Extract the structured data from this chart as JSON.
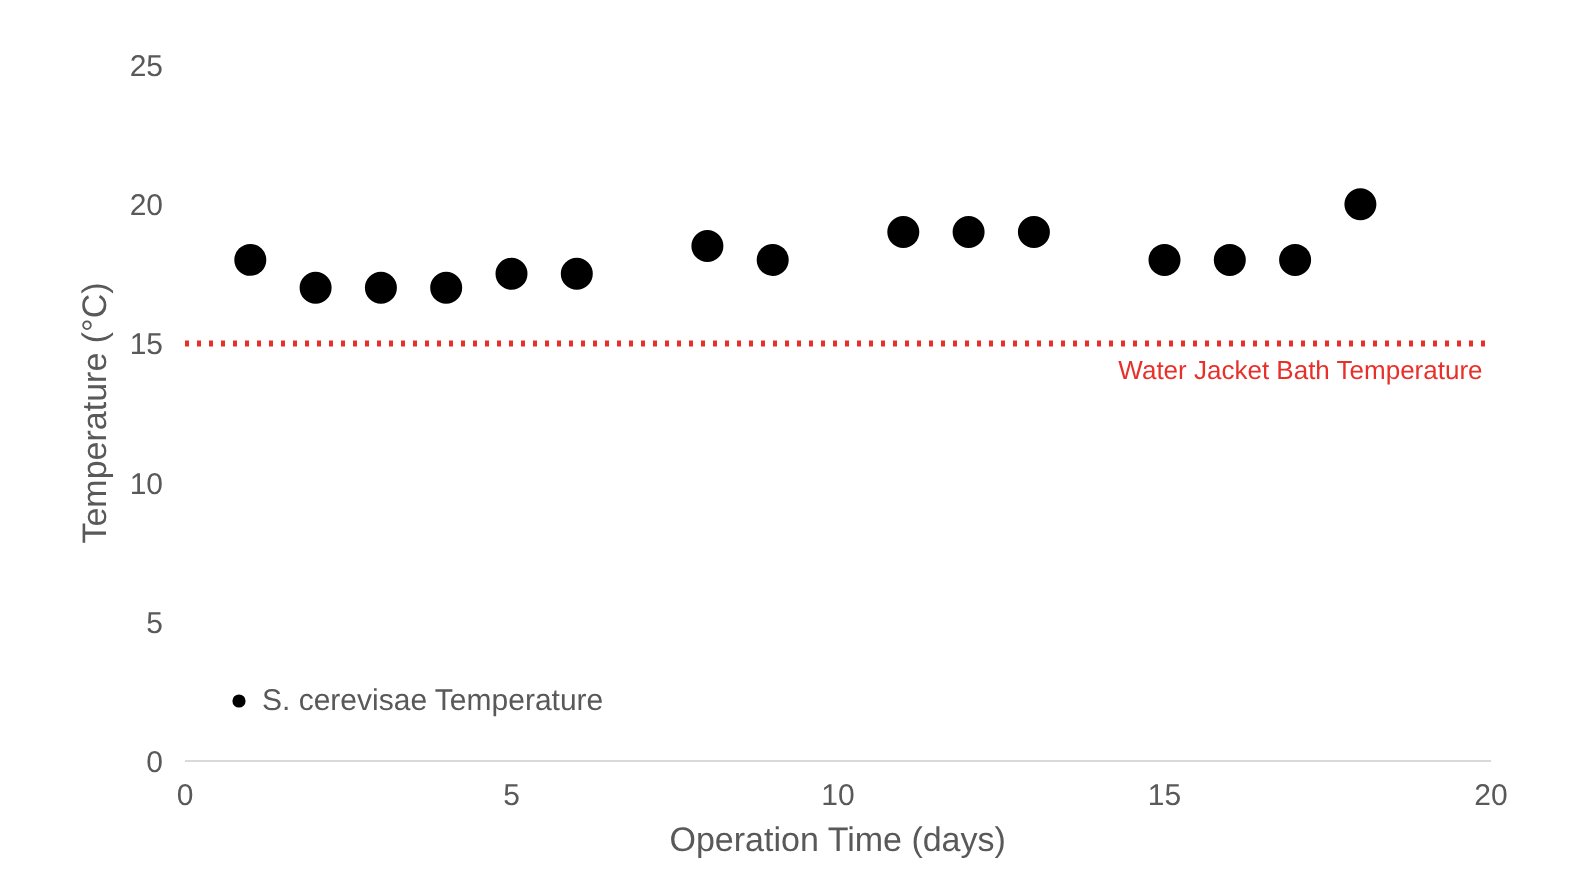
{
  "chart_data": {
    "type": "scatter",
    "xlabel": "Operation Time (days)",
    "ylabel": "Temperature (°C)",
    "x": [
      1,
      2,
      3,
      4,
      5,
      6,
      8,
      9,
      11,
      12,
      13,
      15,
      16,
      17,
      18
    ],
    "series": [
      {
        "name": "S. cerevisae Temperature",
        "color": "#000000",
        "values": [
          18,
          17,
          17,
          17,
          17.5,
          17.5,
          18.5,
          18,
          19,
          19,
          19,
          18,
          18,
          18,
          20
        ]
      }
    ],
    "xlim": [
      0,
      20
    ],
    "xticks": [
      0,
      5,
      10,
      15,
      20
    ],
    "ylim": [
      0,
      25
    ],
    "yticks": [
      0,
      5,
      10,
      15,
      20,
      25
    ],
    "ref_lines": [
      {
        "axis": "y",
        "value": 15,
        "label": "Water Jacket Bath Temperature",
        "color": "#e8302a",
        "line_style": "dotted"
      }
    ],
    "marker": "circle",
    "grid": false,
    "legend": "bottom left"
  }
}
